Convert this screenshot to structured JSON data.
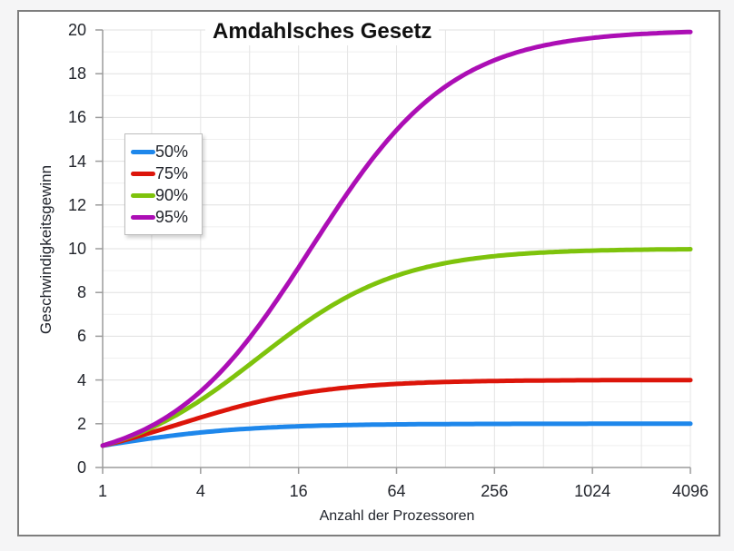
{
  "chart_data": {
    "type": "line",
    "title": "Amdahlsches Gesetz",
    "xlabel": "Anzahl der Prozessoren",
    "ylabel": "Geschwindigkeitsgewinn",
    "x_scale": "log2",
    "xlim": [
      1,
      4096
    ],
    "x_ticks": [
      1,
      4,
      16,
      64,
      256,
      1024,
      4096
    ],
    "ylim": [
      0,
      20
    ],
    "y_ticks": [
      0,
      2,
      4,
      6,
      8,
      10,
      12,
      14,
      16,
      18,
      20
    ],
    "y_minor_step": 1,
    "grid": true,
    "legend_position": "upper-left-inside",
    "colors": {
      "grid_major": "#e0e0e0",
      "grid_minor": "#efefef",
      "grid_vertical": "#e4e4e4",
      "axis": "#9b9b9b",
      "frame_border": "#7e7e7e",
      "page_background": "#f5f5f6",
      "plot_background": "#ffffff",
      "text": "#22252c"
    },
    "series": [
      {
        "name": "50%",
        "parallel_fraction": 0.5,
        "color": "#1E87EB",
        "points": [
          [
            1,
            1.0
          ],
          [
            2,
            1.33
          ],
          [
            4,
            1.6
          ],
          [
            8,
            1.78
          ],
          [
            16,
            1.88
          ],
          [
            32,
            1.94
          ],
          [
            64,
            1.97
          ],
          [
            128,
            1.98
          ],
          [
            256,
            1.99
          ],
          [
            512,
            2.0
          ],
          [
            1024,
            2.0
          ],
          [
            2048,
            2.0
          ],
          [
            4096,
            2.0
          ]
        ]
      },
      {
        "name": "75%",
        "parallel_fraction": 0.75,
        "color": "#DC150A",
        "points": [
          [
            1,
            1.0
          ],
          [
            2,
            1.6
          ],
          [
            4,
            2.29
          ],
          [
            8,
            2.91
          ],
          [
            16,
            3.37
          ],
          [
            32,
            3.66
          ],
          [
            64,
            3.82
          ],
          [
            128,
            3.91
          ],
          [
            256,
            3.95
          ],
          [
            512,
            3.98
          ],
          [
            1024,
            3.99
          ],
          [
            2048,
            3.99
          ],
          [
            4096,
            4.0
          ]
        ]
      },
      {
        "name": "90%",
        "parallel_fraction": 0.9,
        "color": "#7EC30C",
        "points": [
          [
            1,
            1.0
          ],
          [
            2,
            1.82
          ],
          [
            4,
            3.08
          ],
          [
            8,
            4.71
          ],
          [
            16,
            6.4
          ],
          [
            32,
            7.8
          ],
          [
            64,
            8.77
          ],
          [
            128,
            9.34
          ],
          [
            256,
            9.66
          ],
          [
            512,
            9.83
          ],
          [
            1024,
            9.91
          ],
          [
            2048,
            9.96
          ],
          [
            4096,
            9.98
          ]
        ]
      },
      {
        "name": "95%",
        "parallel_fraction": 0.95,
        "color": "#AC0EB5",
        "points": [
          [
            1,
            1.0
          ],
          [
            2,
            1.9
          ],
          [
            4,
            3.48
          ],
          [
            8,
            5.93
          ],
          [
            16,
            9.14
          ],
          [
            32,
            12.55
          ],
          [
            64,
            15.42
          ],
          [
            128,
            17.42
          ],
          [
            256,
            18.62
          ],
          [
            512,
            19.28
          ],
          [
            1024,
            19.64
          ],
          [
            2048,
            19.82
          ],
          [
            4096,
            19.91
          ]
        ]
      }
    ]
  }
}
